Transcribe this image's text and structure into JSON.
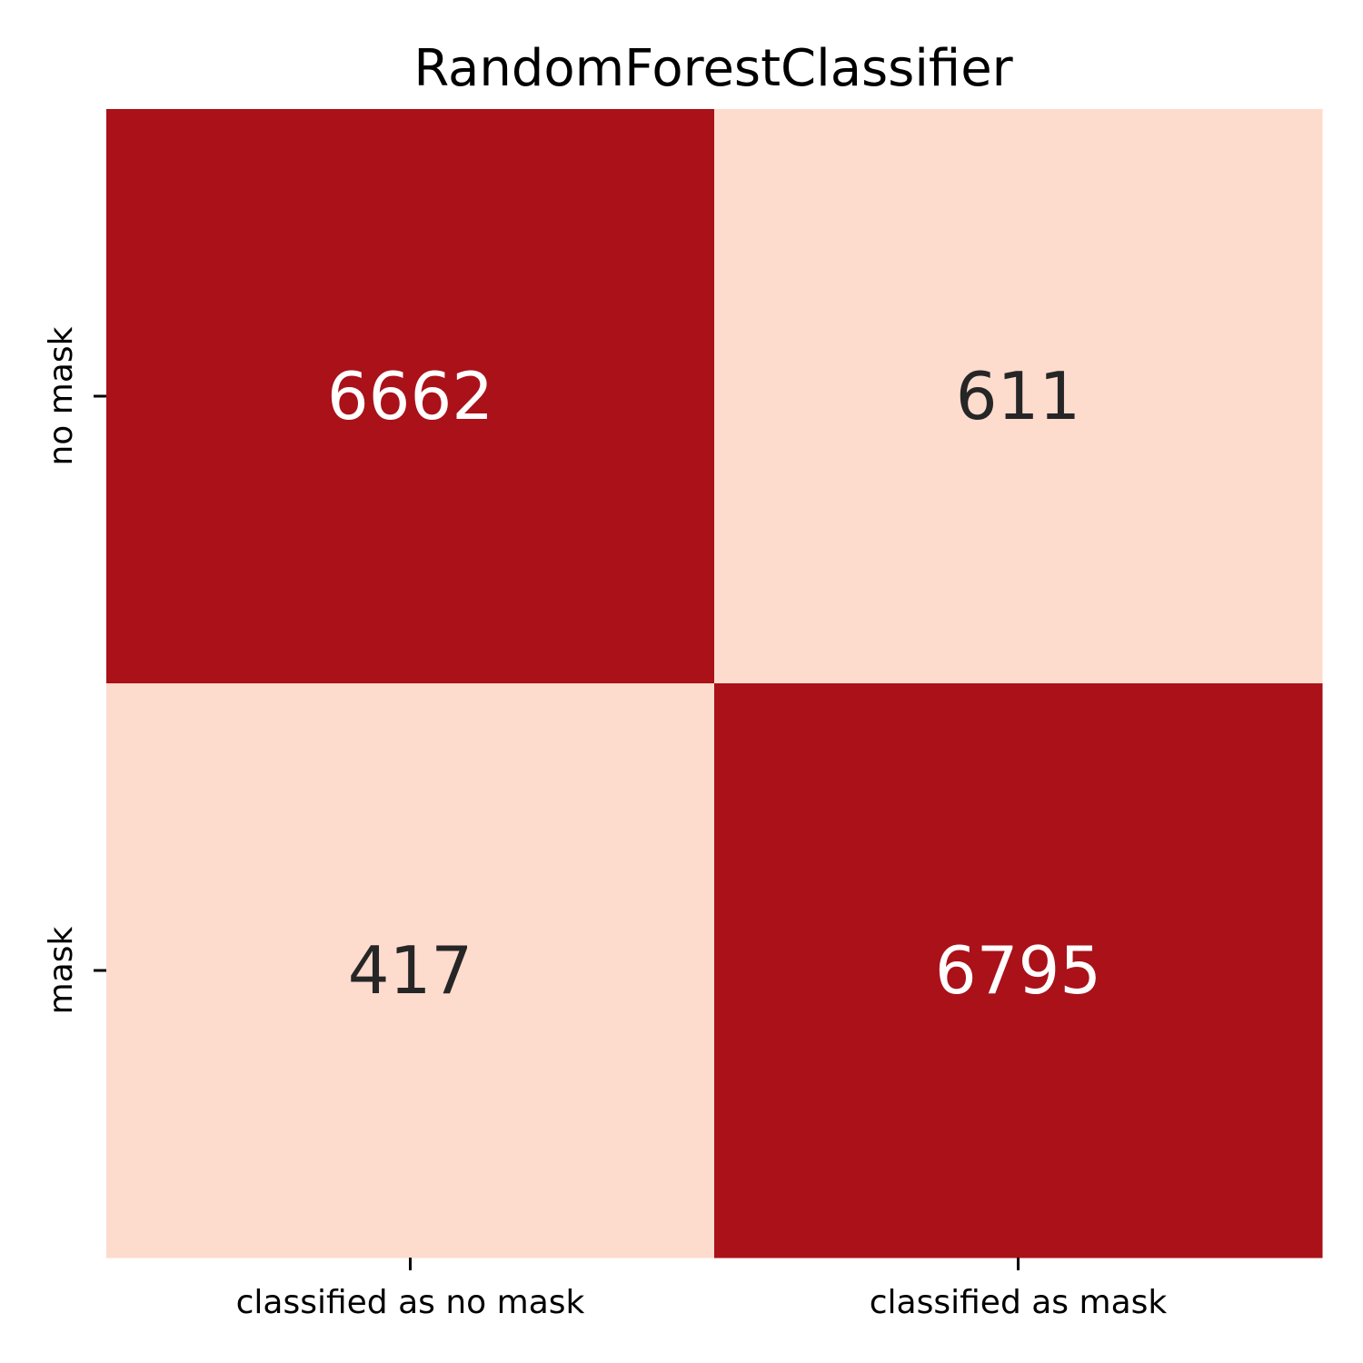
{
  "chart_data": {
    "type": "heatmap",
    "title": "RandomForestClassifier",
    "row_labels": [
      "no mask",
      "mask"
    ],
    "col_labels": [
      "classified as no mask",
      "classified as mask"
    ],
    "values": [
      [
        6662,
        611
      ],
      [
        417,
        6795
      ]
    ],
    "colormap": "Reds",
    "colorbar": false,
    "colors": {
      "high": "#aa1119",
      "low": "#fddbcd",
      "text_on_high": "#ffffff",
      "text_on_low": "#262626"
    }
  }
}
